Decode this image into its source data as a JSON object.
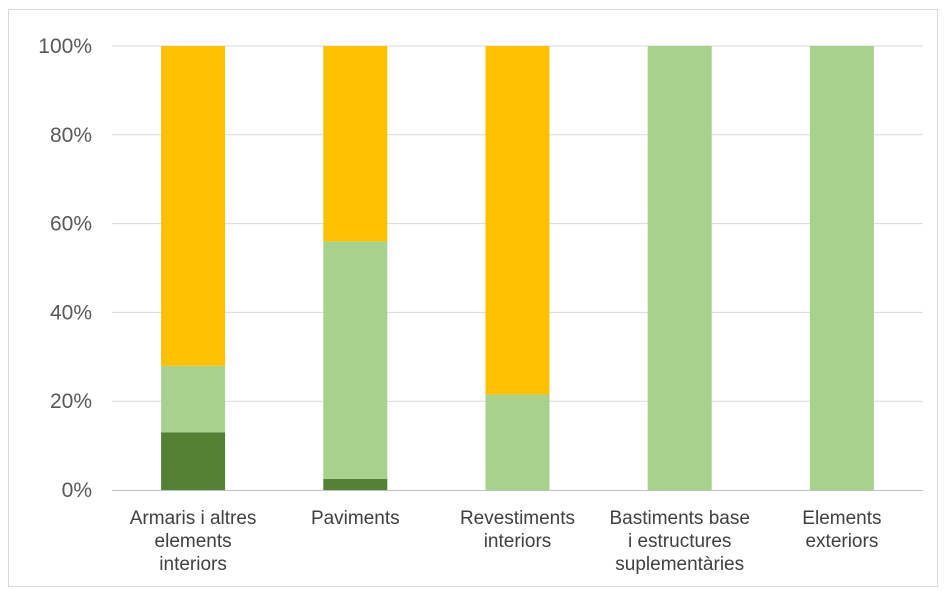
{
  "chart_data": {
    "type": "bar",
    "stacked": true,
    "percent": true,
    "categories": [
      [
        "Armaris i altres",
        "elements",
        "interiors"
      ],
      [
        "Paviments"
      ],
      [
        "Revestiments",
        "interiors"
      ],
      [
        "Bastiments base",
        "i estructures",
        "suplementàries"
      ],
      [
        "Elements",
        "exteriors"
      ]
    ],
    "series": [
      {
        "color": "#548235",
        "values": [
          13,
          2.5,
          0,
          0,
          0
        ]
      },
      {
        "color": "#a9d18e",
        "values": [
          15,
          53.5,
          21.5,
          100,
          100
        ]
      },
      {
        "color": "#ffc000",
        "values": [
          72,
          44,
          78.5,
          0,
          0
        ]
      }
    ],
    "ylim": [
      0,
      100
    ],
    "yticks": [
      "0%",
      "20%",
      "40%",
      "60%",
      "80%",
      "100%"
    ],
    "grid": true,
    "legend": "none"
  }
}
